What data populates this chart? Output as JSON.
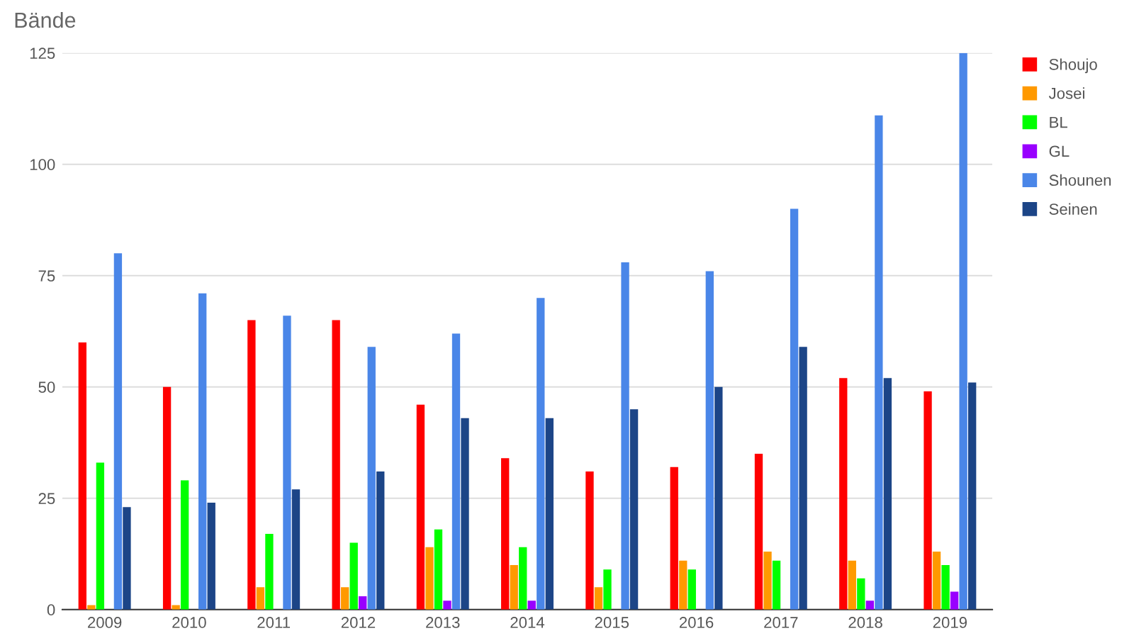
{
  "chart_data": {
    "type": "bar",
    "ylabel": "Bände",
    "categories": [
      "2009",
      "2010",
      "2011",
      "2012",
      "2013",
      "2014",
      "2015",
      "2016",
      "2017",
      "2018",
      "2019"
    ],
    "series": [
      {
        "name": "Shoujo",
        "color": "#ff0000",
        "values": [
          60,
          50,
          65,
          65,
          46,
          34,
          31,
          32,
          35,
          52,
          49
        ]
      },
      {
        "name": "Josei",
        "color": "#ff9900",
        "values": [
          1,
          1,
          5,
          5,
          14,
          10,
          5,
          11,
          13,
          11,
          13
        ]
      },
      {
        "name": "BL",
        "color": "#00ff00",
        "values": [
          33,
          29,
          17,
          15,
          18,
          14,
          9,
          9,
          11,
          7,
          10
        ]
      },
      {
        "name": "GL",
        "color": "#9900ff",
        "values": [
          0,
          0,
          0,
          3,
          2,
          2,
          0,
          0,
          0,
          2,
          4
        ]
      },
      {
        "name": "Shounen",
        "color": "#4a86e8",
        "values": [
          80,
          71,
          66,
          59,
          62,
          70,
          78,
          76,
          90,
          111,
          125
        ]
      },
      {
        "name": "Seinen",
        "color": "#1c4587",
        "values": [
          23,
          24,
          27,
          31,
          43,
          43,
          45,
          50,
          59,
          52,
          51
        ]
      }
    ],
    "ylim": [
      0,
      125
    ],
    "yticks": [
      0,
      25,
      50,
      75,
      100,
      125
    ],
    "grid": "y",
    "legend": "top right"
  }
}
